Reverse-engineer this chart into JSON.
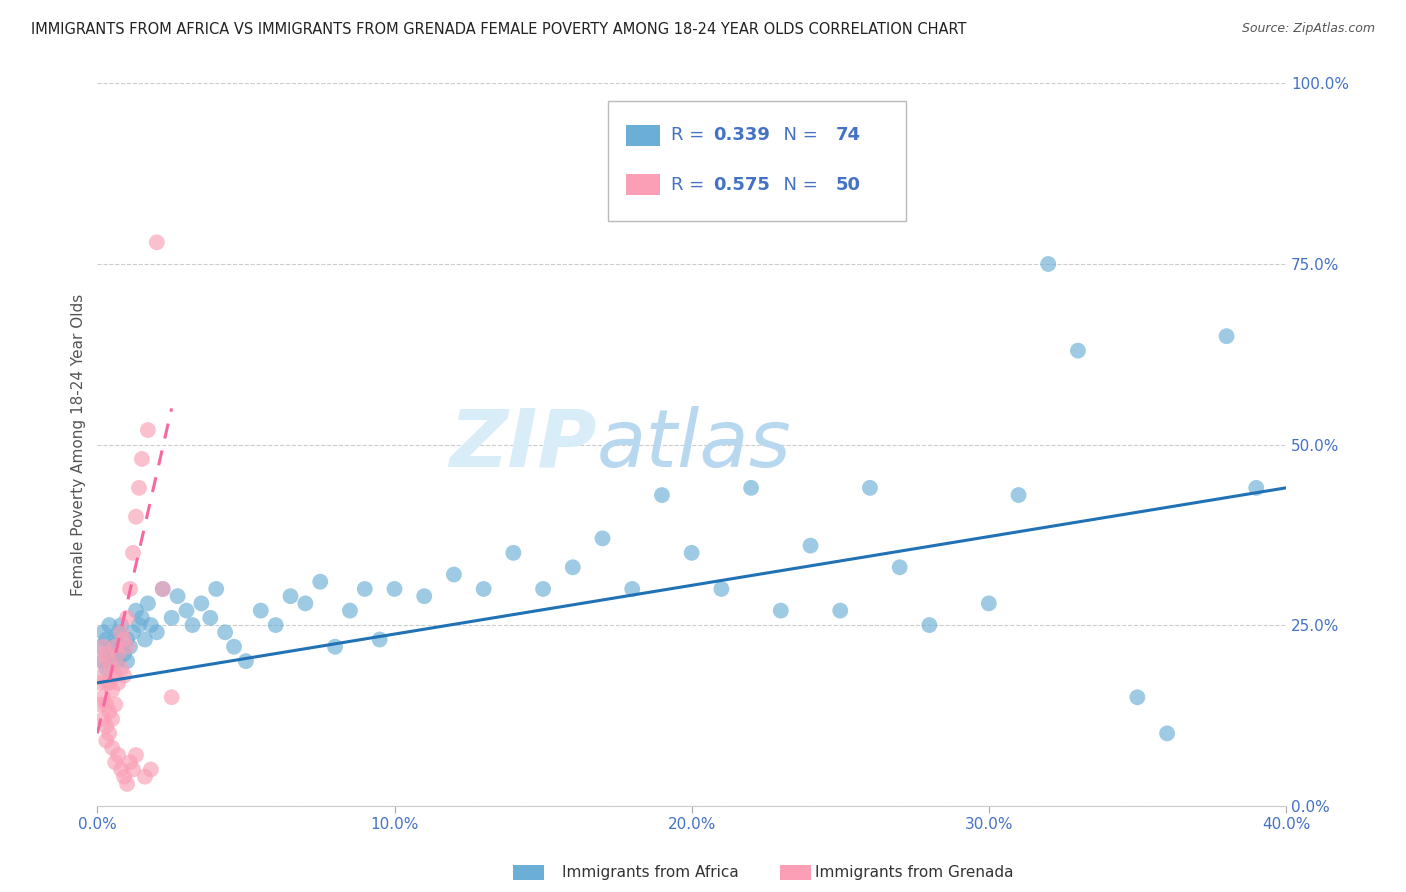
{
  "title": "IMMIGRANTS FROM AFRICA VS IMMIGRANTS FROM GRENADA FEMALE POVERTY AMONG 18-24 YEAR OLDS CORRELATION CHART",
  "source": "Source: ZipAtlas.com",
  "ylabel": "Female Poverty Among 18-24 Year Olds",
  "xlim": [
    0.0,
    0.4
  ],
  "ylim": [
    0.0,
    1.0
  ],
  "xticks": [
    0.0,
    0.1,
    0.2,
    0.3,
    0.4
  ],
  "xtick_labels": [
    "0.0%",
    "10.0%",
    "20.0%",
    "30.0%",
    "40.0%"
  ],
  "yticks_right": [
    0.0,
    0.25,
    0.5,
    0.75,
    1.0
  ],
  "ytick_labels_right": [
    "0.0%",
    "25.0%",
    "50.0%",
    "75.0%",
    "100.0%"
  ],
  "africa_R": 0.339,
  "africa_N": 74,
  "grenada_R": 0.575,
  "grenada_N": 50,
  "africa_color": "#6baed6",
  "grenada_color": "#fa9fb5",
  "africa_line_color": "#2171b5",
  "grenada_line_color": "#f768a1",
  "watermark": "ZIPatlas",
  "watermark_color": "#cce5f5",
  "africa_x": [
    0.001,
    0.002,
    0.002,
    0.003,
    0.003,
    0.004,
    0.004,
    0.005,
    0.005,
    0.006,
    0.006,
    0.007,
    0.007,
    0.008,
    0.008,
    0.009,
    0.01,
    0.01,
    0.011,
    0.012,
    0.013,
    0.014,
    0.015,
    0.016,
    0.017,
    0.018,
    0.02,
    0.022,
    0.025,
    0.027,
    0.03,
    0.032,
    0.035,
    0.038,
    0.04,
    0.043,
    0.046,
    0.05,
    0.055,
    0.06,
    0.065,
    0.07,
    0.075,
    0.08,
    0.085,
    0.09,
    0.095,
    0.1,
    0.11,
    0.12,
    0.13,
    0.14,
    0.15,
    0.16,
    0.17,
    0.18,
    0.19,
    0.2,
    0.21,
    0.22,
    0.23,
    0.24,
    0.25,
    0.26,
    0.27,
    0.28,
    0.3,
    0.31,
    0.32,
    0.33,
    0.35,
    0.36,
    0.38,
    0.39
  ],
  "africa_y": [
    0.22,
    0.2,
    0.24,
    0.19,
    0.23,
    0.21,
    0.25,
    0.2,
    0.22,
    0.23,
    0.21,
    0.24,
    0.2,
    0.22,
    0.25,
    0.21,
    0.23,
    0.2,
    0.22,
    0.24,
    0.27,
    0.25,
    0.26,
    0.23,
    0.28,
    0.25,
    0.24,
    0.3,
    0.26,
    0.29,
    0.27,
    0.25,
    0.28,
    0.26,
    0.3,
    0.24,
    0.22,
    0.2,
    0.27,
    0.25,
    0.29,
    0.28,
    0.31,
    0.22,
    0.27,
    0.3,
    0.23,
    0.3,
    0.29,
    0.32,
    0.3,
    0.35,
    0.3,
    0.33,
    0.37,
    0.3,
    0.43,
    0.35,
    0.3,
    0.44,
    0.27,
    0.36,
    0.27,
    0.44,
    0.33,
    0.25,
    0.28,
    0.43,
    0.75,
    0.63,
    0.15,
    0.1,
    0.65,
    0.44
  ],
  "grenada_x": [
    0.001,
    0.001,
    0.001,
    0.002,
    0.002,
    0.002,
    0.002,
    0.003,
    0.003,
    0.003,
    0.003,
    0.003,
    0.004,
    0.004,
    0.004,
    0.004,
    0.005,
    0.005,
    0.005,
    0.005,
    0.006,
    0.006,
    0.006,
    0.006,
    0.007,
    0.007,
    0.007,
    0.008,
    0.008,
    0.008,
    0.009,
    0.009,
    0.009,
    0.01,
    0.01,
    0.01,
    0.011,
    0.011,
    0.012,
    0.012,
    0.013,
    0.013,
    0.014,
    0.015,
    0.016,
    0.017,
    0.018,
    0.02,
    0.022,
    0.025
  ],
  "grenada_y": [
    0.2,
    0.17,
    0.14,
    0.22,
    0.18,
    0.15,
    0.12,
    0.21,
    0.17,
    0.14,
    0.11,
    0.09,
    0.2,
    0.17,
    0.13,
    0.1,
    0.19,
    0.16,
    0.12,
    0.08,
    0.22,
    0.18,
    0.14,
    0.06,
    0.21,
    0.17,
    0.07,
    0.24,
    0.19,
    0.05,
    0.23,
    0.18,
    0.04,
    0.26,
    0.22,
    0.03,
    0.3,
    0.06,
    0.35,
    0.05,
    0.4,
    0.07,
    0.44,
    0.48,
    0.04,
    0.52,
    0.05,
    0.78,
    0.3,
    0.15
  ],
  "africa_trend_x0": 0.0,
  "africa_trend_y0": 0.17,
  "africa_trend_x1": 0.4,
  "africa_trend_y1": 0.44,
  "grenada_trend_x0": 0.0,
  "grenada_trend_y0": 0.1,
  "grenada_trend_x1": 0.025,
  "grenada_trend_y1": 0.55
}
